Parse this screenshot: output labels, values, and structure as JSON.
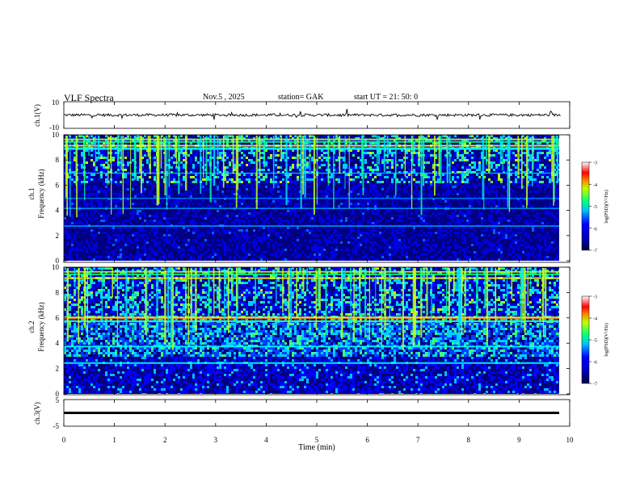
{
  "header": {
    "title": "VLF  Spectra",
    "date": "Nov.5  , 2025",
    "station": "station= GAK",
    "start": "start  UT  =    21: 50: 0"
  },
  "chart_data": [
    {
      "id": "ch1_waveform",
      "type": "line",
      "ylabel": "ch.1(V)",
      "ylim": [
        -10,
        10
      ],
      "yticks": [
        "10",
        "-10"
      ],
      "baseline_value": 0,
      "amplitude_approx": 2
    },
    {
      "id": "ch1_spectrogram",
      "type": "heatmap",
      "ylabel": "ch.1\nFrequency (kHz)",
      "ylabel_line1": "ch.1",
      "ylabel_line2": "Frequency  (kHz)",
      "ylim": [
        0,
        10
      ],
      "yticks": [
        "0",
        "2",
        "4",
        "6",
        "8",
        "10"
      ],
      "colorbar": {
        "label": "log(PSD)(V²/Hz)",
        "ticks": [
          "-3",
          "-4",
          "-5",
          "-6",
          "-7"
        ],
        "range": [
          -7,
          -3
        ]
      }
    },
    {
      "id": "ch2_spectrogram",
      "type": "heatmap",
      "ylabel_line1": "ch.2",
      "ylabel_line2": "Frequency  (kHz)",
      "ylim": [
        0,
        10
      ],
      "yticks": [
        "0",
        "2",
        "4",
        "6",
        "8",
        "10"
      ],
      "colorbar": {
        "label": "log(PSD)(V²/Hz)",
        "ticks": [
          "-3",
          "-4",
          "-5",
          "-6",
          "-7"
        ],
        "range": [
          -7,
          -3
        ]
      }
    },
    {
      "id": "ch3_waveform",
      "type": "line",
      "ylabel": "ch.3(V)",
      "ylim": [
        -5,
        5
      ],
      "yticks": [
        "5",
        "-5"
      ],
      "baseline_value": -2.5
    }
  ],
  "xaxis": {
    "label": "Time  (min)",
    "range": [
      0,
      10
    ],
    "ticks": [
      "0",
      "1",
      "2",
      "3",
      "4",
      "5",
      "6",
      "7",
      "8",
      "9",
      "10"
    ],
    "data_end": 9.82
  },
  "colors": {
    "low": "#000060",
    "mid": "#0000ff",
    "cyan": "#00e0ff",
    "green": "#00ff60",
    "yellow": "#ffff00",
    "red": "#ff0000",
    "high": "#ffffff"
  }
}
